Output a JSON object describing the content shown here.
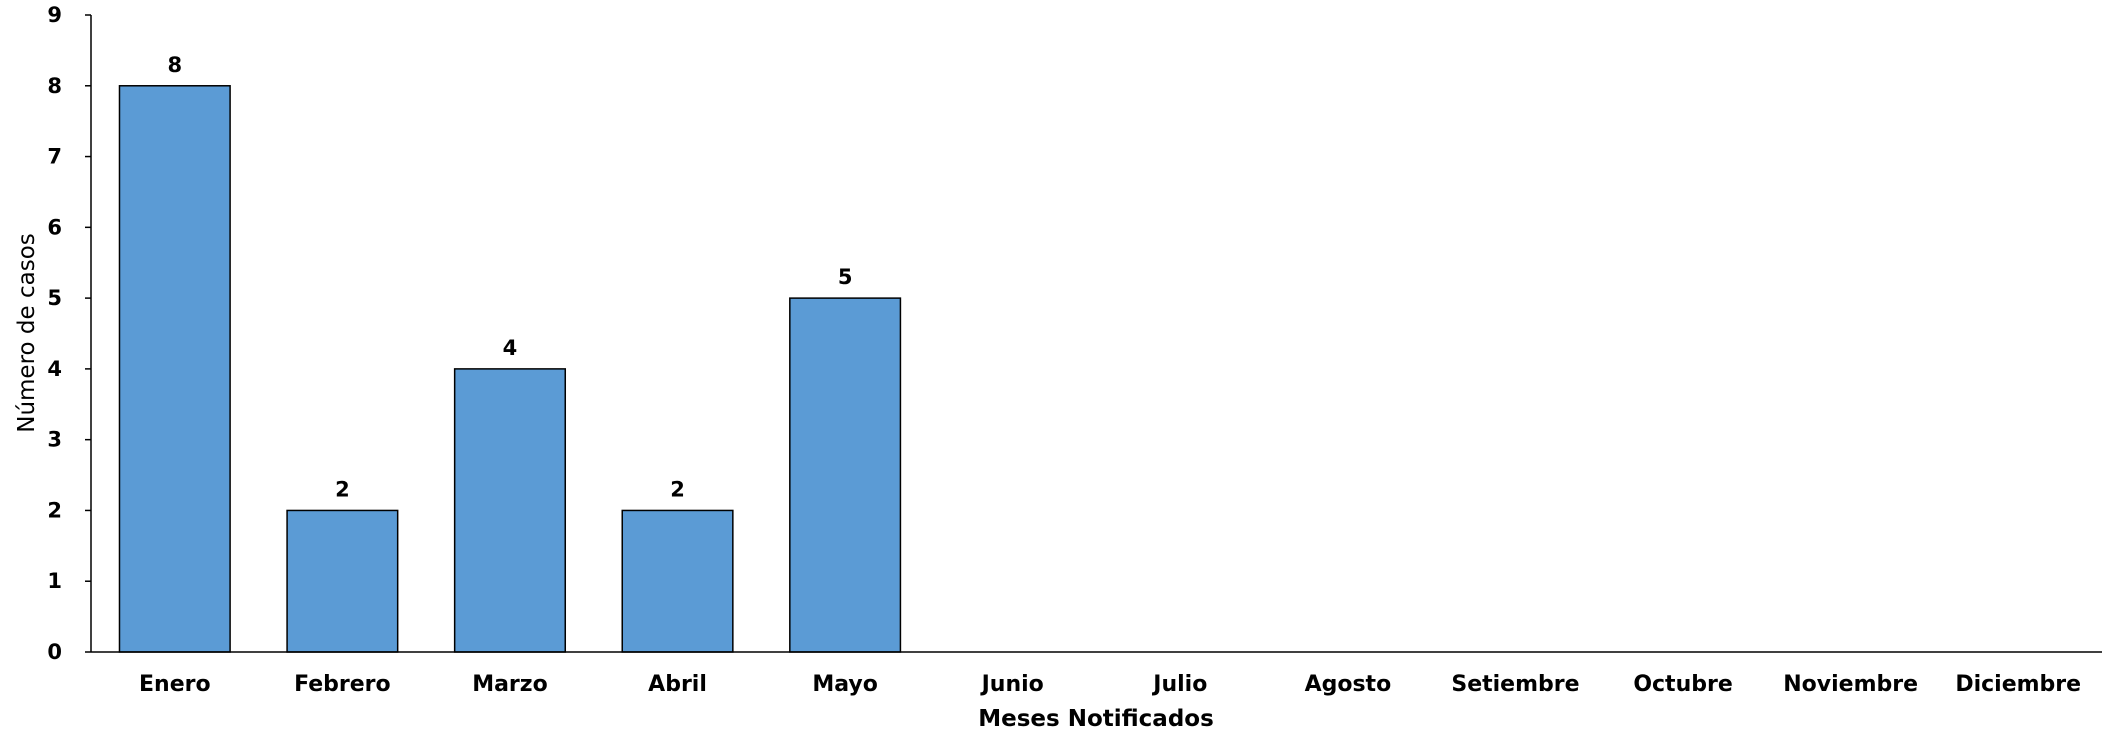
{
  "chart_data": {
    "type": "bar",
    "categories": [
      "Enero",
      "Febrero",
      "Marzo",
      "Abril",
      "Mayo",
      "Junio",
      "Julio",
      "Agosto",
      "Setiembre",
      "Octubre",
      "Noviembre",
      "Diciembre"
    ],
    "values": [
      8,
      2,
      4,
      2,
      5,
      null,
      null,
      null,
      null,
      null,
      null,
      null
    ],
    "data_labels": [
      "8",
      "2",
      "4",
      "2",
      "5",
      "",
      "",
      "",
      "",
      "",
      "",
      ""
    ],
    "title": "",
    "xlabel": "Meses Notificados",
    "ylabel": "Número de casos",
    "ylim": [
      0,
      9
    ],
    "yticks": [
      "0",
      "1",
      "2",
      "3",
      "4",
      "5",
      "6",
      "7",
      "8",
      "9"
    ],
    "grid": false,
    "legend": "none",
    "colors": {
      "bar_fill": "#5b9bd5",
      "bar_stroke": "#000000",
      "axis": "#000000"
    }
  }
}
